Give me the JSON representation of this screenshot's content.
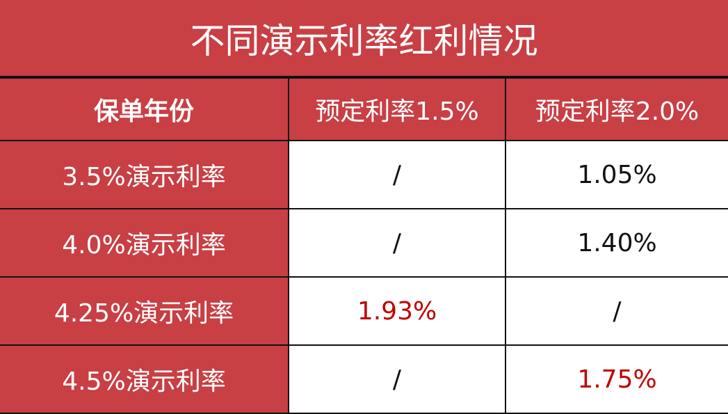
{
  "title": "不同演示利率红利情况",
  "colors": {
    "header_bg": "#c83f44",
    "highlight_text": "#c00000"
  },
  "columns": [
    "保单年份",
    "预定利率1.5%",
    "预定利率2.0%"
  ],
  "rows": [
    {
      "label": "3.5%演示利率",
      "c1": "/",
      "c2": "1.05%"
    },
    {
      "label": "4.0%演示利率",
      "c1": "/",
      "c2": "1.40%"
    },
    {
      "label": "4.25%演示利率",
      "c1": "1.93%",
      "c2": "/"
    },
    {
      "label": "4.5%演示利率",
      "c1": "/",
      "c2": "1.75%"
    }
  ]
}
